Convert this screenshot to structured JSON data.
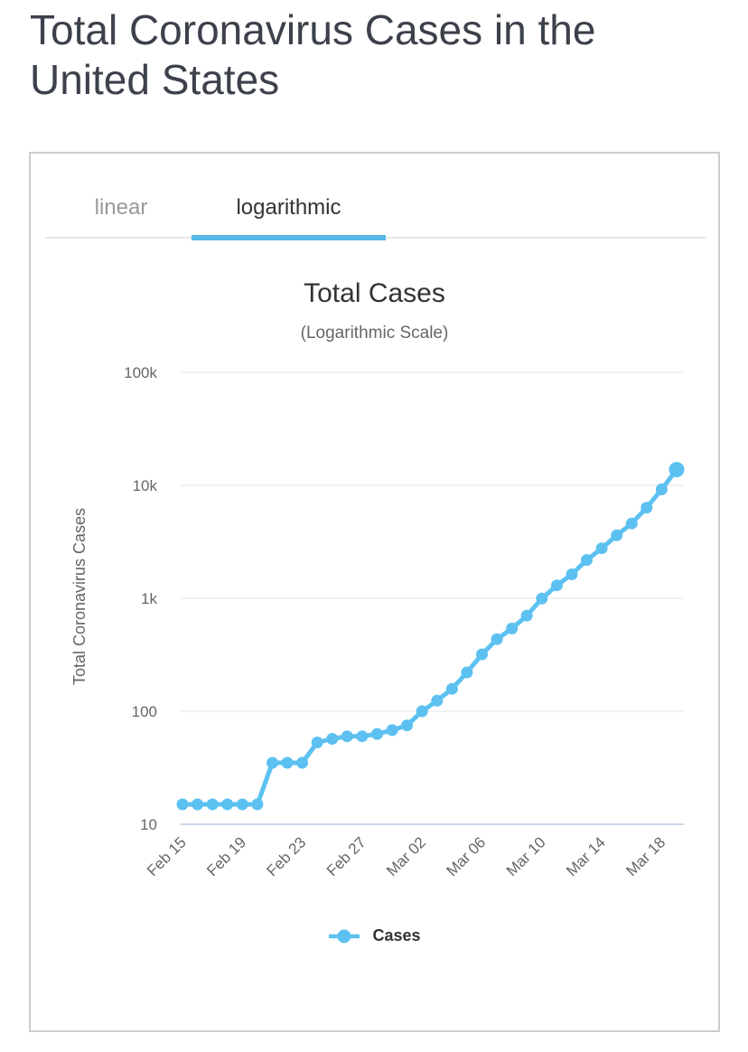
{
  "page_title": "Total Coronavirus Cases in the United States",
  "tabs": [
    {
      "label": "linear",
      "active": false
    },
    {
      "label": "logarithmic",
      "active": true
    }
  ],
  "colors": {
    "accent_blue": "#57B9E8",
    "series_blue": "#5CC1F1",
    "gridline": "#E6E6E6",
    "axis_line": "#CCD6EB",
    "title_text": "#3C414B",
    "tick_text": "#666666"
  },
  "chart_data": {
    "type": "line",
    "title": "Total Cases",
    "subtitle": "(Logarithmic Scale)",
    "ylabel": "Total Coronavirus Cases",
    "yscale": "logarithmic",
    "grid": true,
    "legend_position": "bottom",
    "ylim": [
      10,
      100000
    ],
    "ytick_values": [
      10,
      100,
      1000,
      10000,
      100000
    ],
    "ytick_labels": [
      "10",
      "100",
      "1k",
      "10k",
      "100k"
    ],
    "xtick_indices": [
      0,
      4,
      8,
      12,
      16,
      20,
      24,
      28,
      32
    ],
    "xtick_labels": [
      "Feb 15",
      "Feb 19",
      "Feb 23",
      "Feb 27",
      "Mar 02",
      "Mar 06",
      "Mar 10",
      "Mar 14",
      "Mar 18"
    ],
    "x": [
      "Feb 15",
      "Feb 16",
      "Feb 17",
      "Feb 18",
      "Feb 19",
      "Feb 20",
      "Feb 21",
      "Feb 22",
      "Feb 23",
      "Feb 24",
      "Feb 25",
      "Feb 26",
      "Feb 27",
      "Feb 28",
      "Feb 29",
      "Mar 01",
      "Mar 02",
      "Mar 03",
      "Mar 04",
      "Mar 05",
      "Mar 06",
      "Mar 07",
      "Mar 08",
      "Mar 09",
      "Mar 10",
      "Mar 11",
      "Mar 12",
      "Mar 13",
      "Mar 14",
      "Mar 15",
      "Mar 16",
      "Mar 17",
      "Mar 18",
      "Mar 19"
    ],
    "series": [
      {
        "name": "Cases",
        "color": "#5CC1F1",
        "values": [
          15,
          15,
          15,
          15,
          15,
          15,
          35,
          35,
          35,
          53,
          57,
          60,
          60,
          63,
          68,
          75,
          100,
          124,
          158,
          221,
          319,
          435,
          541,
          704,
          994,
          1301,
          1630,
          2183,
          2771,
          3613,
          4596,
          6344,
          9197,
          13789
        ]
      }
    ]
  }
}
